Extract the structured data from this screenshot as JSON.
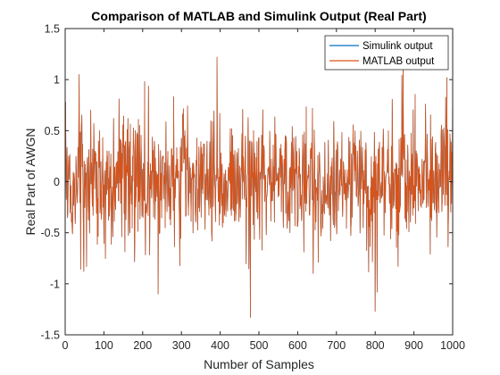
{
  "chart_data": {
    "type": "line",
    "title": "Comparison of MATLAB and Simulink Output (Real Part)",
    "xlabel": "Number of Samples",
    "ylabel": "Real Part of AWGN",
    "xlim": [
      0,
      1000
    ],
    "ylim": [
      -1.5,
      1.5
    ],
    "xticks": [
      0,
      100,
      200,
      300,
      400,
      500,
      600,
      700,
      800,
      900,
      1000
    ],
    "xtick_labels": [
      "0",
      "100",
      "200",
      "300",
      "400",
      "500",
      "600",
      "700",
      "800",
      "900",
      "1000"
    ],
    "yticks": [
      -1.5,
      -1,
      -0.5,
      0,
      0.5,
      1,
      1.5
    ],
    "ytick_labels": [
      "-1.5",
      "-1",
      "-0.5",
      "0",
      "0.5",
      "1",
      "1.5"
    ],
    "grid": false,
    "legend_position": "top-right",
    "series": [
      {
        "name": "Simulink output",
        "color": "#0072BD",
        "x_range": [
          0,
          1000
        ],
        "samples": 1001,
        "mean": 0,
        "std_dev": 0.32,
        "notable_points": [
          {
            "x": 1,
            "y": 0.78
          },
          {
            "x": 36,
            "y": 1.05
          },
          {
            "x": 48,
            "y": -0.88
          },
          {
            "x": 125,
            "y": 0.62
          },
          {
            "x": 205,
            "y": 0.98
          },
          {
            "x": 240,
            "y": -1.1
          },
          {
            "x": 392,
            "y": 1.22
          },
          {
            "x": 478,
            "y": -1.33
          },
          {
            "x": 640,
            "y": -0.9
          },
          {
            "x": 800,
            "y": -1.27
          },
          {
            "x": 872,
            "y": 1.15
          },
          {
            "x": 985,
            "y": 1.02
          },
          {
            "x": 1000,
            "y": 1.1
          }
        ]
      },
      {
        "name": "MATLAB output",
        "color": "#D95319",
        "x_range": [
          0,
          1000
        ],
        "samples": 1001,
        "mean": 0,
        "std_dev": 0.32,
        "notable_points": [
          {
            "x": 1,
            "y": 0.78
          },
          {
            "x": 36,
            "y": 1.05
          },
          {
            "x": 48,
            "y": -0.88
          },
          {
            "x": 125,
            "y": 0.62
          },
          {
            "x": 205,
            "y": 0.98
          },
          {
            "x": 240,
            "y": -1.1
          },
          {
            "x": 392,
            "y": 1.22
          },
          {
            "x": 478,
            "y": -1.33
          },
          {
            "x": 640,
            "y": -0.9
          },
          {
            "x": 800,
            "y": -1.27
          },
          {
            "x": 872,
            "y": 1.15
          },
          {
            "x": 985,
            "y": 1.02
          },
          {
            "x": 1000,
            "y": 1.1
          }
        ]
      }
    ]
  }
}
